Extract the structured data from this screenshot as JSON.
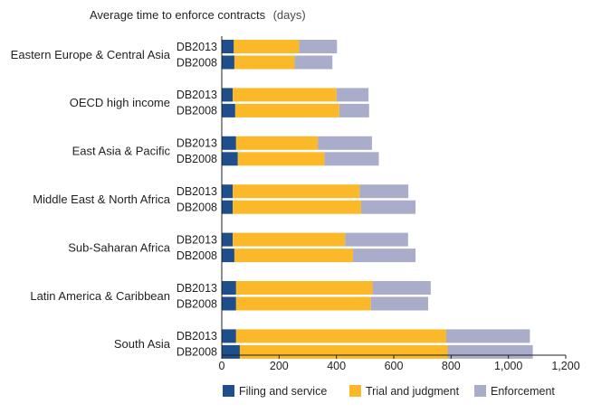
{
  "chart_data": {
    "type": "bar",
    "orientation": "horizontal",
    "stacked": true,
    "title": "Average time to enforce contracts",
    "title_unit": "(days)",
    "xlim": [
      0,
      1200
    ],
    "x_ticks": [
      0,
      200,
      400,
      600,
      800,
      1000,
      1200
    ],
    "x_tick_labels": [
      "0",
      "200",
      "400",
      "600",
      "800",
      "1,000",
      "1,200"
    ],
    "grid": false,
    "legend_position": "bottom",
    "series": [
      {
        "name": "Filing and service",
        "color": "#1f4e8c"
      },
      {
        "name": "Trial and judgment",
        "color": "#fbb829"
      },
      {
        "name": "Enforcement",
        "color": "#a9adc9"
      }
    ],
    "groups": [
      {
        "region": "Eastern Europe & Central Asia",
        "bars": [
          {
            "year": "DB2013",
            "values": [
              42,
              228,
              132
            ]
          },
          {
            "year": "DB2008",
            "values": [
              44,
              210,
              132
            ]
          }
        ]
      },
      {
        "region": "OECD high income",
        "bars": [
          {
            "year": "DB2013",
            "values": [
              38,
              362,
              112
            ]
          },
          {
            "year": "DB2008",
            "values": [
              47,
              363,
              104
            ]
          }
        ]
      },
      {
        "region": "East Asia & Pacific",
        "bars": [
          {
            "year": "DB2013",
            "values": [
              50,
              285,
              189
            ]
          },
          {
            "year": "DB2008",
            "values": [
              56,
              302,
              190
            ]
          }
        ]
      },
      {
        "region": "Middle East & North Africa",
        "bars": [
          {
            "year": "DB2013",
            "values": [
              38,
              443,
              170
            ]
          },
          {
            "year": "DB2008",
            "values": [
              38,
              448,
              190
            ]
          }
        ]
      },
      {
        "region": "Sub-Saharan Africa",
        "bars": [
          {
            "year": "DB2013",
            "values": [
              38,
              392,
              220
            ]
          },
          {
            "year": "DB2008",
            "values": [
              44,
              414,
              218
            ]
          }
        ]
      },
      {
        "region": "Latin America & Caribbean",
        "bars": [
          {
            "year": "DB2013",
            "values": [
              50,
              476,
              203
            ]
          },
          {
            "year": "DB2008",
            "values": [
              50,
              470,
              200
            ]
          }
        ]
      },
      {
        "region": "South Asia",
        "bars": [
          {
            "year": "DB2013",
            "values": [
              50,
              733,
              292
            ]
          },
          {
            "year": "DB2008",
            "values": [
              63,
              725,
              297
            ]
          }
        ]
      }
    ]
  }
}
